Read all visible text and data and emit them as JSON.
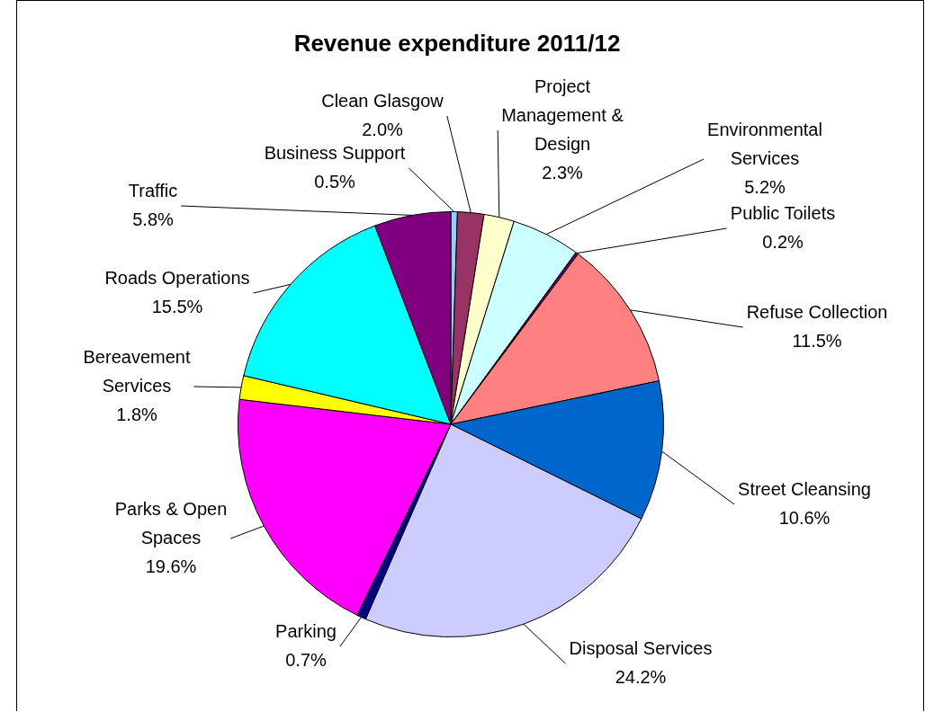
{
  "chart_data": {
    "type": "pie",
    "title": "Revenue expenditure 2011/12",
    "categories": [
      "Business Support",
      "Clean Glasgow",
      "Project Management & Design",
      "Environmental Services",
      "Public Toilets",
      "Refuse Collection",
      "Street Cleansing",
      "Disposal Services",
      "Parking",
      "Parks & Open Spaces",
      "Bereavement Services",
      "Roads Operations",
      "Traffic"
    ],
    "values": [
      0.5,
      2.0,
      2.3,
      5.2,
      0.2,
      11.5,
      10.6,
      24.2,
      0.7,
      19.6,
      1.8,
      15.5,
      5.8
    ],
    "colors": [
      "#99ccff",
      "#993366",
      "#ffffcc",
      "#ccffff",
      "#660066",
      "#ff8080",
      "#0066cc",
      "#ccccff",
      "#000080",
      "#ff00ff",
      "#ffff00",
      "#00ffff",
      "#800080"
    ],
    "value_labels": [
      "0.5%",
      "2.0%",
      "2.3%",
      "5.2%",
      "0.2%",
      "11.5%",
      "10.6%",
      "24.2%",
      "0.7%",
      "19.6%",
      "1.8%",
      "15.5%",
      "5.8%"
    ],
    "legend": false
  }
}
